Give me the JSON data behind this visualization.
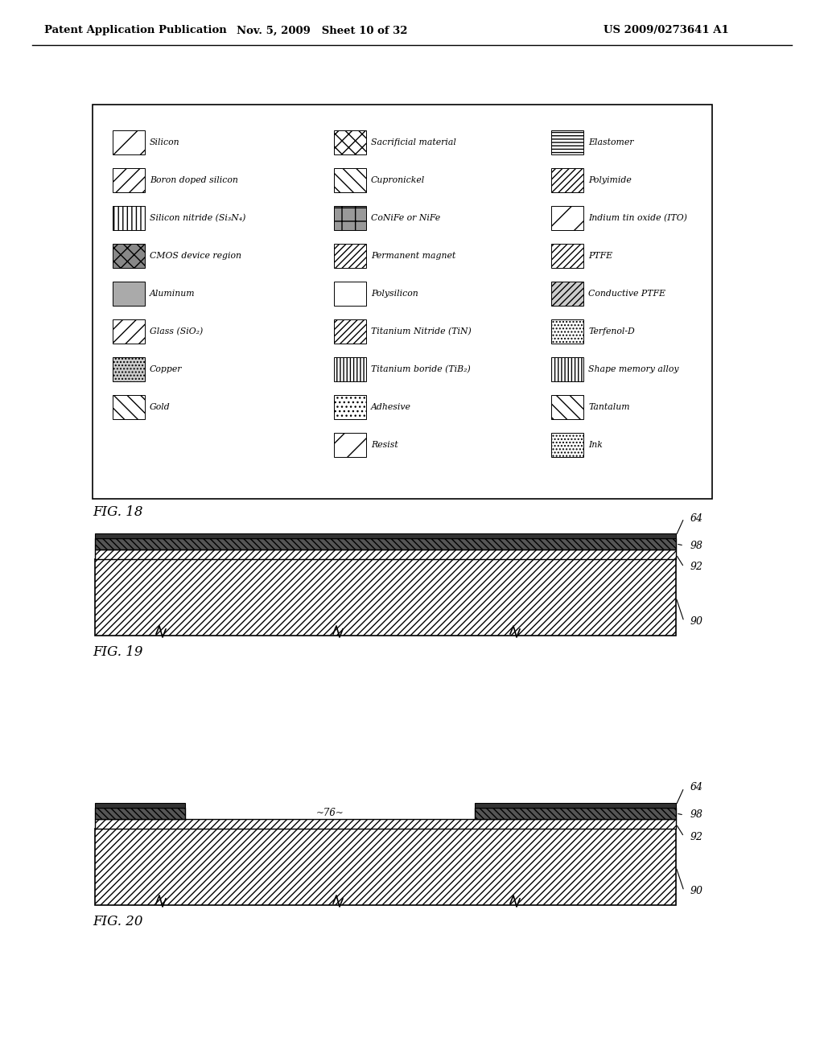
{
  "header_left": "Patent Application Publication",
  "header_mid": "Nov. 5, 2009   Sheet 10 of 32",
  "header_right": "US 2009/0273641 A1",
  "fig18_label": "FIG. 18",
  "fig19_label": "FIG. 19",
  "fig20_label": "FIG. 20",
  "bg_color": "#ffffff",
  "legend_col1": [
    "Silicon",
    "Boron doped silicon",
    "Silicon nitride (Si₃N₄)",
    "CMOS device region",
    "Aluminum",
    "Glass (SiO₂)",
    "Copper",
    "Gold"
  ],
  "legend_col2": [
    "Sacrificial material",
    "Cupronickel",
    "CoNiFe or NiFe",
    "Permanent magnet",
    "Polysilicon",
    "Titanium Nitride (TiN)",
    "Titanium boride (TiB₂)",
    "Adhesive",
    "Resist"
  ],
  "legend_col3": [
    "Elastomer",
    "Polyimide",
    "Indium tin oxide (ITO)",
    "PTFE",
    "Conductive PTFE",
    "Terfenol-D",
    "Shape memory alloy",
    "Tantalum",
    "Ink"
  ]
}
